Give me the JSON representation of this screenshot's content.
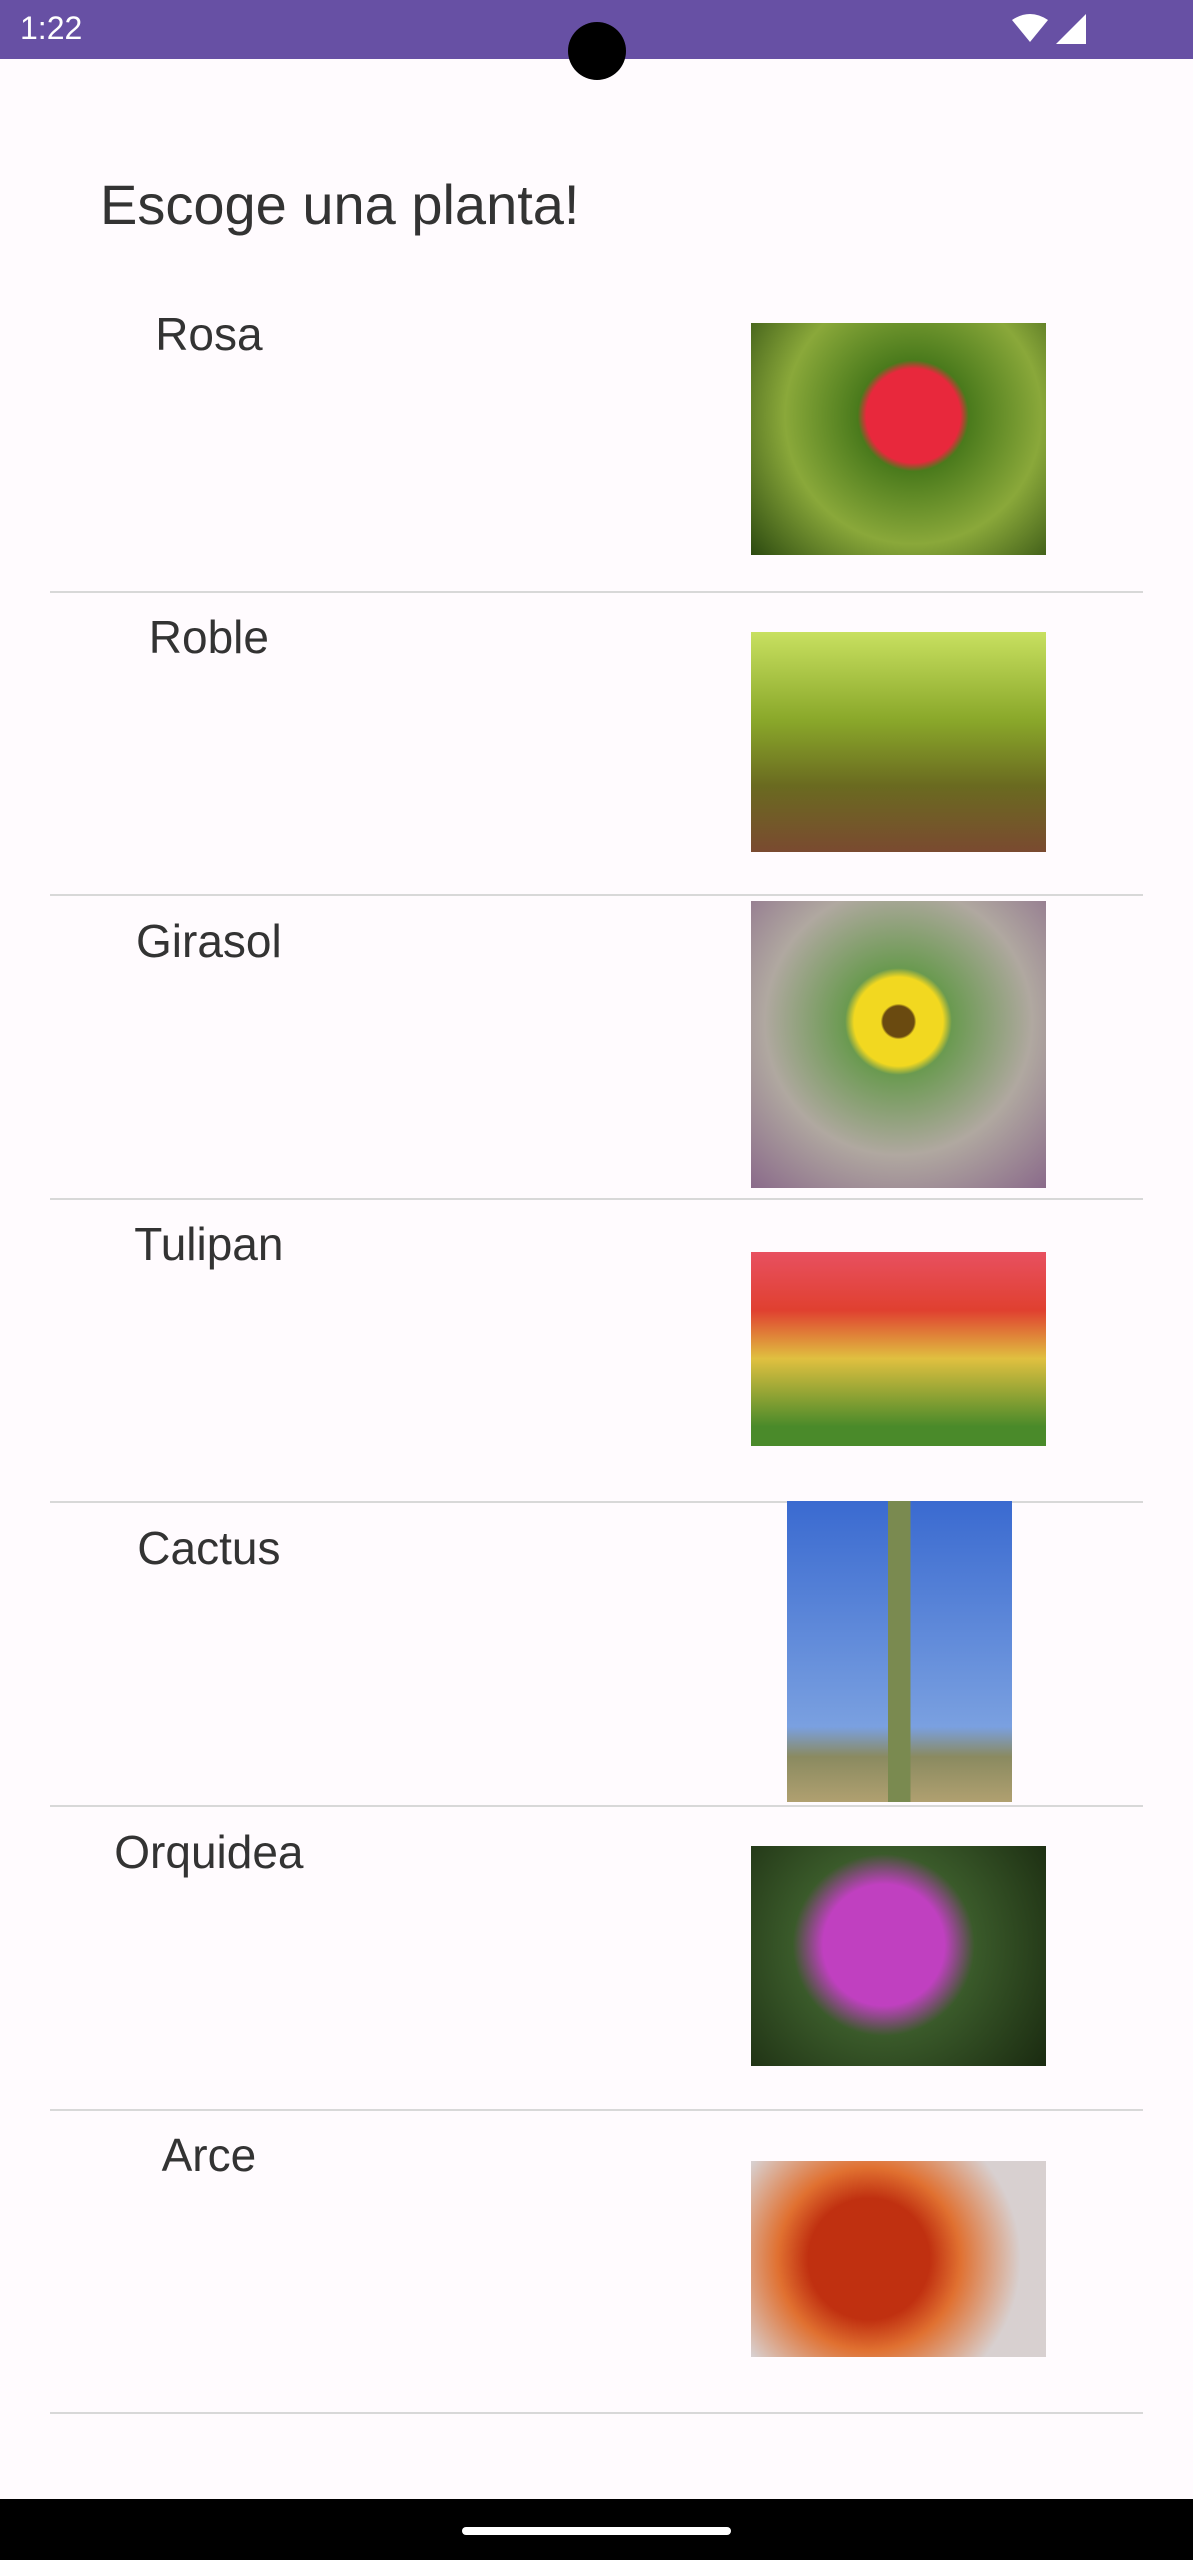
{
  "status_bar": {
    "time": "1:22"
  },
  "header": {
    "title": "Escoge una planta!"
  },
  "list": {
    "items": [
      "Rosa",
      "Roble",
      "Girasol",
      "Tulipan",
      "Cactus",
      "Orquidea",
      "Arce"
    ]
  }
}
